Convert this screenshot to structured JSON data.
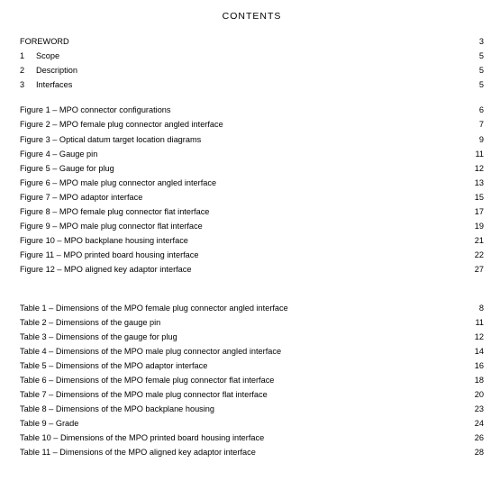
{
  "title": "CONTENTS",
  "sections": [
    {
      "num": "",
      "label": "FOREWORD",
      "page": "3"
    },
    {
      "num": "1",
      "label": "Scope",
      "page": "5"
    },
    {
      "num": "2",
      "label": "Description",
      "page": "5"
    },
    {
      "num": "3",
      "label": "Interfaces",
      "page": "5"
    }
  ],
  "figures": [
    {
      "label": "Figure 1 – MPO connector configurations",
      "page": "6"
    },
    {
      "label": "Figure 2 – MPO female plug connector angled interface",
      "page": "7"
    },
    {
      "label": "Figure 3 – Optical datum target location diagrams",
      "page": "9"
    },
    {
      "label": "Figure 4 – Gauge pin",
      "page": "11"
    },
    {
      "label": "Figure 5 – Gauge for plug",
      "page": "12"
    },
    {
      "label": "Figure 6 – MPO male plug connector angled interface",
      "page": "13"
    },
    {
      "label": "Figure 7 – MPO adaptor interface",
      "page": "15"
    },
    {
      "label": "Figure 8 – MPO female plug connector flat interface",
      "page": "17"
    },
    {
      "label": "Figure 9 – MPO male plug connector flat interface",
      "page": "19"
    },
    {
      "label": "Figure 10 – MPO backplane housing interface",
      "page": "21"
    },
    {
      "label": "Figure 11 – MPO printed board housing interface",
      "page": "22"
    },
    {
      "label": "Figure 12 – MPO aligned key adaptor interface",
      "page": "27"
    }
  ],
  "tables": [
    {
      "label": "Table 1 – Dimensions of the MPO female plug connector angled interface",
      "page": "8"
    },
    {
      "label": "Table 2 – Dimensions of the gauge pin",
      "page": "11"
    },
    {
      "label": "Table 3 – Dimensions of the gauge for plug",
      "page": "12"
    },
    {
      "label": "Table 4 – Dimensions of the MPO male plug connector angled interface",
      "page": "14"
    },
    {
      "label": "Table 5 – Dimensions of the MPO adaptor interface",
      "page": "16"
    },
    {
      "label": "Table 6 – Dimensions of the MPO female plug connector flat interface",
      "page": "18"
    },
    {
      "label": "Table 7 – Dimensions of the MPO male plug connector flat interface",
      "page": "20"
    },
    {
      "label": "Table 8 – Dimensions of the MPO backplane housing",
      "page": "23"
    },
    {
      "label": "Table 9 – Grade",
      "page": "24"
    },
    {
      "label": "Table 10 – Dimensions of the MPO printed board housing interface",
      "page": "26"
    },
    {
      "label": "Table 11 – Dimensions of the MPO aligned key adaptor interface",
      "page": "28"
    }
  ]
}
